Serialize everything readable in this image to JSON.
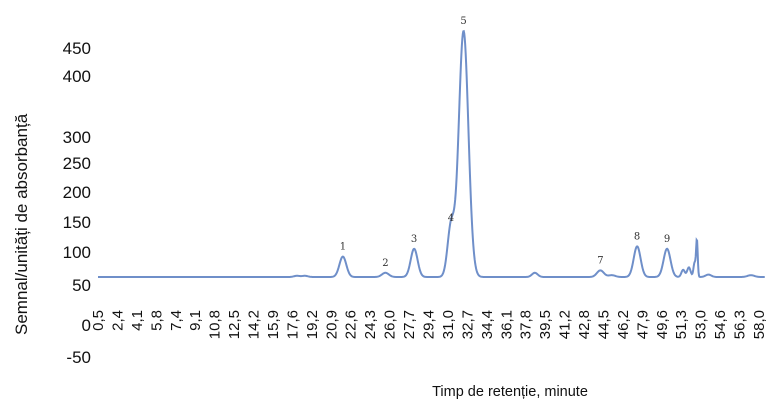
{
  "chart_data": {
    "type": "line",
    "title": "",
    "xlabel": "Timp de retenție, minute",
    "ylabel": "Semnal/unități de absorbanță",
    "xlim": [
      0.5,
      58.5
    ],
    "ylim": [
      -50,
      470
    ],
    "y_ticks": [
      "450",
      "400",
      "300",
      "250",
      "200",
      "150",
      "100",
      "50",
      "0",
      "-50"
    ],
    "x_ticks": [
      "0,5",
      "2,4",
      "4,1",
      "5,8",
      "7,4",
      "9,1",
      "10,8",
      "12,5",
      "14,2",
      "15,9",
      "17,6",
      "19,2",
      "20,9",
      "22,6",
      "24,3",
      "26,0",
      "27,7",
      "29,4",
      "31,0",
      "32,7",
      "34,4",
      "36,1",
      "37,8",
      "39,5",
      "41,2",
      "42,8",
      "44,5",
      "46,2",
      "47,9",
      "49,6",
      "51,3",
      "53,0",
      "54,6",
      "56,3",
      "58,0"
    ],
    "baseline": 55,
    "series": [
      {
        "color": "#6f8fc9",
        "peaks": [
          {
            "label": "1",
            "x": 21.8,
            "y": 89
          },
          {
            "label": "2",
            "x": 25.5,
            "y": 62
          },
          {
            "label": "3",
            "x": 28.0,
            "y": 102
          },
          {
            "label": "4",
            "x": 31.2,
            "y": 137
          },
          {
            "label": "5",
            "x": 32.3,
            "y": 465
          },
          {
            "label": "7",
            "x": 44.2,
            "y": 66
          },
          {
            "label": "8",
            "x": 47.4,
            "y": 106
          },
          {
            "label": "9",
            "x": 50.0,
            "y": 102
          }
        ]
      }
    ],
    "grid": false,
    "legend": "none"
  }
}
